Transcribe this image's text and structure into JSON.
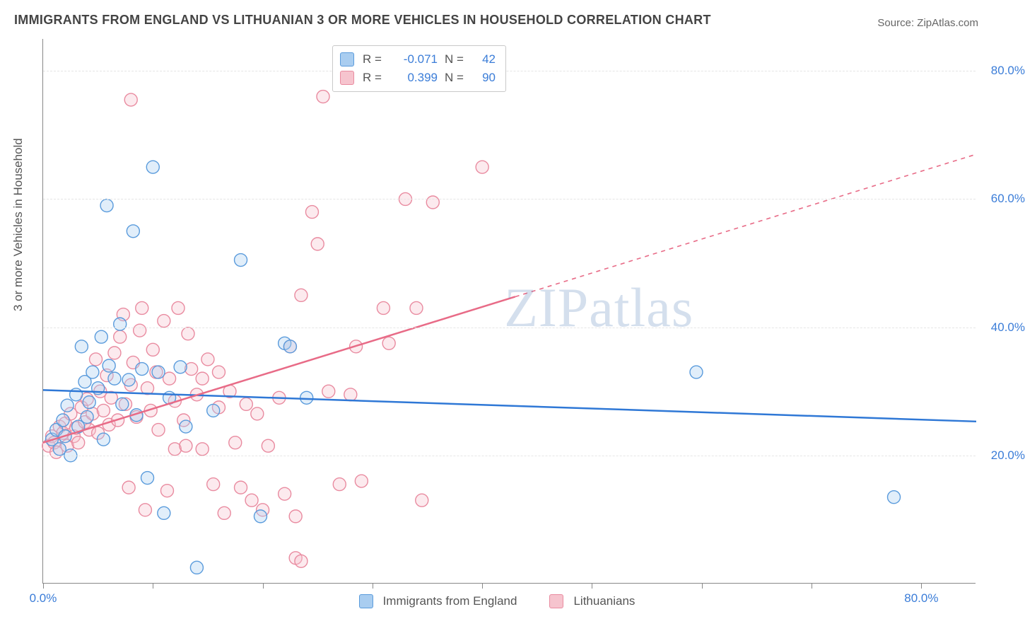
{
  "title": "IMMIGRANTS FROM ENGLAND VS LITHUANIAN 3 OR MORE VEHICLES IN HOUSEHOLD CORRELATION CHART",
  "source_prefix": "Source: ",
  "source": "ZipAtlas.com",
  "ylabel": "3 or more Vehicles in Household",
  "watermark": "ZIPatlas",
  "chart": {
    "type": "scatter",
    "xlim": [
      0,
      85
    ],
    "ylim": [
      0,
      85
    ],
    "xticks": [
      0,
      10,
      20,
      30,
      40,
      50,
      60,
      70,
      80
    ],
    "xtick_labels": {
      "0": "0.0%",
      "80": "80.0%"
    },
    "yticks": [
      20,
      40,
      60,
      80
    ],
    "ytick_labels": [
      "20.0%",
      "40.0%",
      "60.0%",
      "80.0%"
    ],
    "background_color": "#ffffff",
    "grid_color": "#e5e5e5",
    "grid_dash": true,
    "axis_color": "#888888",
    "marker_radius": 9,
    "marker_stroke_width": 1.4,
    "marker_fill_opacity": 0.35,
    "trend_line_width": 2.5
  },
  "series": [
    {
      "key": "england",
      "label": "Immigrants from England",
      "color_fill": "#a9cdf0",
      "color_stroke": "#5a9bdc",
      "trend_color": "#2f78d6",
      "R": "-0.071",
      "N": "42",
      "trend": {
        "x1": 0,
        "y1": 30.2,
        "x2": 85,
        "y2": 25.3,
        "dashed_after": null
      },
      "points": [
        [
          0.8,
          22.5
        ],
        [
          1.2,
          24.0
        ],
        [
          1.5,
          21.0
        ],
        [
          1.8,
          25.5
        ],
        [
          2.0,
          23.0
        ],
        [
          2.2,
          27.8
        ],
        [
          2.5,
          20.0
        ],
        [
          3.0,
          29.5
        ],
        [
          3.2,
          24.5
        ],
        [
          3.5,
          37.0
        ],
        [
          3.8,
          31.5
        ],
        [
          4.0,
          26.0
        ],
        [
          4.2,
          28.3
        ],
        [
          4.5,
          33.0
        ],
        [
          5.0,
          30.5
        ],
        [
          5.3,
          38.5
        ],
        [
          5.8,
          59.0
        ],
        [
          6.0,
          34.0
        ],
        [
          6.5,
          32.0
        ],
        [
          7.0,
          40.5
        ],
        [
          7.2,
          28.0
        ],
        [
          7.8,
          31.8
        ],
        [
          8.2,
          55.0
        ],
        [
          8.5,
          26.3
        ],
        [
          9.0,
          33.5
        ],
        [
          9.5,
          16.5
        ],
        [
          10.0,
          65.0
        ],
        [
          10.5,
          33.0
        ],
        [
          11.0,
          11.0
        ],
        [
          11.5,
          29.0
        ],
        [
          12.5,
          33.8
        ],
        [
          13.0,
          24.5
        ],
        [
          14.0,
          2.5
        ],
        [
          15.5,
          27.0
        ],
        [
          18.0,
          50.5
        ],
        [
          19.8,
          10.5
        ],
        [
          22.0,
          37.5
        ],
        [
          22.5,
          37.0
        ],
        [
          24.0,
          29.0
        ],
        [
          59.5,
          33.0
        ],
        [
          77.5,
          13.5
        ],
        [
          5.5,
          22.5
        ]
      ]
    },
    {
      "key": "lithuanian",
      "label": "Lithuanians",
      "color_fill": "#f6c4ce",
      "color_stroke": "#e98ba0",
      "trend_color": "#e86b87",
      "R": "0.399",
      "N": "90",
      "trend": {
        "x1": 0,
        "y1": 22.0,
        "x2": 85,
        "y2": 67.0,
        "dashed_after": 43
      },
      "points": [
        [
          0.5,
          21.5
        ],
        [
          0.8,
          23.0
        ],
        [
          1.0,
          22.0
        ],
        [
          1.2,
          20.5
        ],
        [
          1.5,
          24.5
        ],
        [
          1.8,
          23.5
        ],
        [
          2.0,
          25.0
        ],
        [
          2.2,
          21.5
        ],
        [
          2.5,
          26.5
        ],
        [
          2.8,
          23.0
        ],
        [
          3.0,
          24.3
        ],
        [
          3.2,
          22.0
        ],
        [
          3.5,
          27.5
        ],
        [
          3.8,
          25.2
        ],
        [
          4.0,
          28.8
        ],
        [
          4.2,
          24.0
        ],
        [
          4.5,
          26.5
        ],
        [
          4.8,
          35.0
        ],
        [
          5.0,
          23.5
        ],
        [
          5.2,
          30.0
        ],
        [
          5.5,
          27.0
        ],
        [
          5.8,
          32.5
        ],
        [
          6.0,
          24.8
        ],
        [
          6.2,
          29.0
        ],
        [
          6.5,
          36.0
        ],
        [
          6.8,
          25.5
        ],
        [
          7.0,
          38.5
        ],
        [
          7.3,
          42.0
        ],
        [
          7.5,
          28.0
        ],
        [
          7.8,
          15.0
        ],
        [
          8.0,
          31.0
        ],
        [
          8.2,
          34.5
        ],
        [
          8.5,
          26.0
        ],
        [
          8.8,
          39.5
        ],
        [
          9.0,
          43.0
        ],
        [
          9.3,
          11.5
        ],
        [
          9.5,
          30.5
        ],
        [
          9.8,
          27.0
        ],
        [
          10.0,
          36.5
        ],
        [
          10.3,
          33.0
        ],
        [
          10.5,
          24.0
        ],
        [
          11.0,
          41.0
        ],
        [
          11.3,
          14.5
        ],
        [
          11.5,
          32.0
        ],
        [
          12.0,
          28.5
        ],
        [
          12.3,
          43.0
        ],
        [
          12.8,
          25.5
        ],
        [
          13.2,
          39.0
        ],
        [
          13.5,
          33.5
        ],
        [
          14.0,
          29.5
        ],
        [
          14.5,
          21.0
        ],
        [
          15.0,
          35.0
        ],
        [
          15.5,
          15.5
        ],
        [
          16.0,
          27.5
        ],
        [
          16.5,
          11.0
        ],
        [
          17.0,
          30.0
        ],
        [
          17.5,
          22.0
        ],
        [
          18.0,
          15.0
        ],
        [
          18.5,
          28.0
        ],
        [
          19.0,
          13.0
        ],
        [
          19.5,
          26.5
        ],
        [
          20.0,
          11.5
        ],
        [
          20.5,
          21.5
        ],
        [
          21.5,
          29.0
        ],
        [
          22.0,
          14.0
        ],
        [
          22.5,
          37.0
        ],
        [
          23.0,
          10.5
        ],
        [
          23.5,
          45.0
        ],
        [
          24.5,
          58.0
        ],
        [
          25.0,
          53.0
        ],
        [
          25.5,
          76.0
        ],
        [
          26.0,
          30.0
        ],
        [
          27.0,
          15.5
        ],
        [
          28.5,
          37.0
        ],
        [
          29.0,
          16.0
        ],
        [
          31.0,
          43.0
        ],
        [
          31.5,
          37.5
        ],
        [
          33.0,
          60.0
        ],
        [
          34.0,
          43.0
        ],
        [
          35.5,
          59.5
        ],
        [
          40.0,
          65.0
        ],
        [
          8.0,
          75.5
        ],
        [
          12.0,
          21.0
        ],
        [
          13.0,
          21.5
        ],
        [
          14.5,
          32.0
        ],
        [
          16.0,
          33.0
        ],
        [
          23.0,
          4.0
        ],
        [
          23.5,
          3.5
        ],
        [
          28.0,
          29.5
        ],
        [
          34.5,
          13.0
        ]
      ]
    }
  ],
  "legend_top_labels": {
    "R": "R =",
    "N": "N ="
  },
  "legend_bottom": [
    {
      "series": "england"
    },
    {
      "series": "lithuanian"
    }
  ]
}
